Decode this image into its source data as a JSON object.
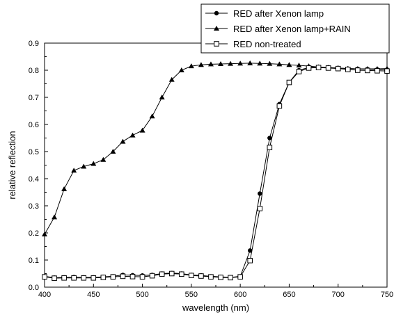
{
  "chart_data": {
    "type": "line",
    "xlabel": "wavelength (nm)",
    "ylabel": "relative reflection",
    "xlim": [
      400,
      750
    ],
    "ylim": [
      0.0,
      0.9
    ],
    "x_ticks": [
      "400",
      "450",
      "500",
      "550",
      "600",
      "650",
      "700",
      "750"
    ],
    "y_ticks": [
      "0.0",
      "0.1",
      "0.2",
      "0.3",
      "0.4",
      "0.5",
      "0.6",
      "0.7",
      "0.8",
      "0.9"
    ],
    "grid": false,
    "legend_position": "top-right",
    "series": [
      {
        "name": "RED after Xenon lamp",
        "marker": "circle",
        "color": "#000000",
        "x": [
          400,
          410,
          420,
          430,
          440,
          450,
          460,
          470,
          480,
          490,
          500,
          510,
          520,
          530,
          540,
          550,
          560,
          570,
          580,
          590,
          600,
          610,
          620,
          630,
          640,
          650,
          660,
          670,
          680,
          690,
          700,
          710,
          720,
          730,
          740,
          750
        ],
        "y": [
          0.04,
          0.035,
          0.036,
          0.037,
          0.036,
          0.036,
          0.038,
          0.04,
          0.045,
          0.044,
          0.043,
          0.045,
          0.05,
          0.052,
          0.05,
          0.045,
          0.043,
          0.04,
          0.038,
          0.036,
          0.04,
          0.135,
          0.345,
          0.55,
          0.675,
          0.755,
          0.8,
          0.81,
          0.812,
          0.81,
          0.808,
          0.806,
          0.805,
          0.804,
          0.803,
          0.802
        ]
      },
      {
        "name": "RED after Xenon lamp+RAIN",
        "marker": "triangle",
        "color": "#000000",
        "x": [
          400,
          410,
          420,
          430,
          440,
          450,
          460,
          470,
          480,
          490,
          500,
          510,
          520,
          530,
          540,
          550,
          560,
          570,
          580,
          590,
          600,
          610,
          620,
          630,
          640,
          650,
          660,
          670,
          680,
          690,
          700,
          710,
          720,
          730,
          740,
          750
        ],
        "y": [
          0.195,
          0.258,
          0.362,
          0.43,
          0.445,
          0.455,
          0.47,
          0.5,
          0.537,
          0.56,
          0.578,
          0.63,
          0.7,
          0.765,
          0.8,
          0.815,
          0.82,
          0.822,
          0.823,
          0.824,
          0.825,
          0.826,
          0.825,
          0.824,
          0.822,
          0.82,
          0.818,
          0.815,
          0.812,
          0.81,
          0.808,
          0.806,
          0.805,
          0.805,
          0.805,
          0.806
        ]
      },
      {
        "name": "RED non-treated",
        "marker": "square-open",
        "color": "#000000",
        "x": [
          400,
          410,
          420,
          430,
          440,
          450,
          460,
          470,
          480,
          490,
          500,
          510,
          520,
          530,
          540,
          550,
          560,
          570,
          580,
          590,
          600,
          610,
          620,
          630,
          640,
          650,
          660,
          670,
          680,
          690,
          700,
          710,
          720,
          730,
          740,
          750
        ],
        "y": [
          0.038,
          0.033,
          0.034,
          0.034,
          0.034,
          0.034,
          0.036,
          0.038,
          0.04,
          0.039,
          0.038,
          0.042,
          0.048,
          0.05,
          0.048,
          0.043,
          0.041,
          0.038,
          0.036,
          0.035,
          0.038,
          0.098,
          0.29,
          0.515,
          0.668,
          0.755,
          0.795,
          0.808,
          0.81,
          0.808,
          0.806,
          0.803,
          0.8,
          0.799,
          0.798,
          0.797
        ]
      }
    ]
  }
}
